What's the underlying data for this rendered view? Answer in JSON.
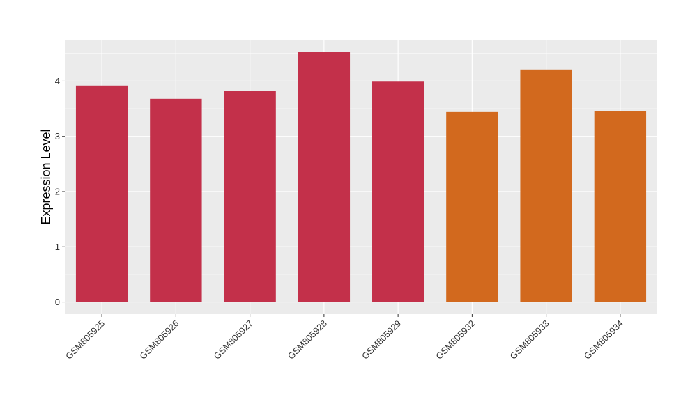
{
  "chart_data": {
    "type": "bar",
    "title": "",
    "xlabel": "",
    "ylabel": "Expression Level",
    "categories": [
      "GSM805925",
      "GSM805926",
      "GSM805927",
      "GSM805928",
      "GSM805929",
      "GSM805932",
      "GSM805933",
      "GSM805934"
    ],
    "values": [
      3.92,
      3.68,
      3.82,
      4.53,
      3.99,
      3.44,
      4.21,
      3.46
    ],
    "bar_colors": [
      "#c3304a",
      "#c3304a",
      "#c3304a",
      "#c3304a",
      "#c3304a",
      "#d2691e",
      "#d2691e",
      "#d2691e"
    ],
    "yticks": [
      0,
      1,
      2,
      3,
      4
    ],
    "ylim": [
      -0.22,
      4.75
    ],
    "grid": true,
    "panel_background": "#ebebeb",
    "grid_color": "#ffffff"
  }
}
